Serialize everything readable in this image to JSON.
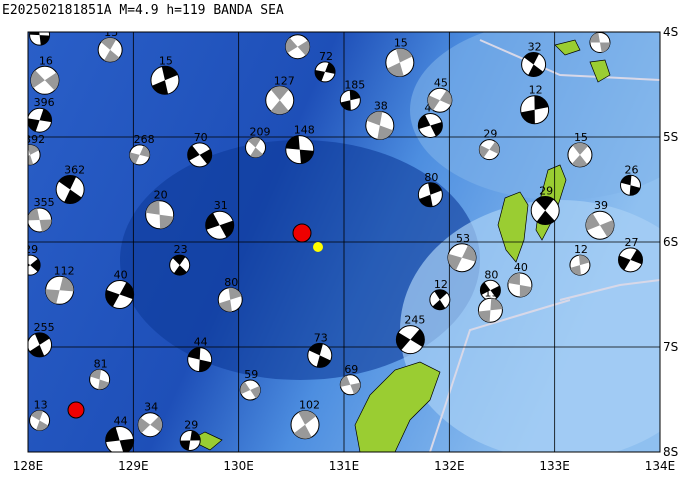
{
  "map": {
    "title": "E202502181851A M=4.9 h=119 BANDA SEA",
    "xlim": [
      128,
      134
    ],
    "ylim": [
      -8,
      -4
    ],
    "xticks": [
      {
        "value": 128,
        "label": "128E"
      },
      {
        "value": 129,
        "label": "129E"
      },
      {
        "value": 130,
        "label": "130E"
      },
      {
        "value": 131,
        "label": "131E"
      },
      {
        "value": 132,
        "label": "132E"
      },
      {
        "value": 133,
        "label": "133E"
      },
      {
        "value": 134,
        "label": "134E"
      }
    ],
    "yticks": [
      {
        "value": -4,
        "label": "4S"
      },
      {
        "value": -5,
        "label": "5S"
      },
      {
        "value": -6,
        "label": "6S"
      },
      {
        "value": -7,
        "label": "7S"
      },
      {
        "value": -8,
        "label": "8S"
      }
    ],
    "grid": true,
    "events": [
      {
        "lon": 133.43,
        "lat": -4.1,
        "depth": "17"
      },
      {
        "lon": 132.8,
        "lat": -4.31,
        "depth": "32"
      },
      {
        "lon": 131.53,
        "lat": -4.29,
        "depth": "15"
      },
      {
        "lon": 130.82,
        "lat": -4.38,
        "depth": "72"
      },
      {
        "lon": 130.56,
        "lat": -4.14,
        "depth": "33"
      },
      {
        "lon": 130.58,
        "lat": -5.12,
        "depth": "148"
      },
      {
        "lon": 130.16,
        "lat": -5.1,
        "depth": "209"
      },
      {
        "lon": 131.82,
        "lat": -5.55,
        "depth": "80"
      },
      {
        "lon": 132.12,
        "lat": -6.15,
        "depth": "53"
      },
      {
        "lon": 132.39,
        "lat": -6.46,
        "depth": "80"
      },
      {
        "lon": 132.67,
        "lat": -6.41,
        "depth": "40"
      },
      {
        "lon": 132.91,
        "lat": -5.7,
        "depth": "29"
      },
      {
        "lon": 133.24,
        "lat": -6.22,
        "depth": "12"
      },
      {
        "lon": 133.72,
        "lat": -6.17,
        "depth": "27"
      },
      {
        "lon": 133.43,
        "lat": -5.84,
        "depth": "39"
      },
      {
        "lon": 133.72,
        "lat": -5.46,
        "depth": "26"
      },
      {
        "lon": 133.24,
        "lat": -5.17,
        "depth": "15"
      },
      {
        "lon": 132.81,
        "lat": -4.74,
        "depth": "12"
      },
      {
        "lon": 132.38,
        "lat": -5.12,
        "depth": "29"
      },
      {
        "lon": 131.82,
        "lat": -4.89,
        "depth": "47"
      },
      {
        "lon": 131.34,
        "lat": -4.89,
        "depth": "38"
      },
      {
        "lon": 131.91,
        "lat": -6.55,
        "depth": "12"
      },
      {
        "lon": 132.39,
        "lat": -6.65,
        "depth": "19"
      },
      {
        "lon": 131.63,
        "lat": -6.93,
        "depth": "245"
      },
      {
        "lon": 131.06,
        "lat": -7.36,
        "depth": "69"
      },
      {
        "lon": 130.77,
        "lat": -7.08,
        "depth": "73"
      },
      {
        "lon": 130.63,
        "lat": -7.74,
        "depth": "102"
      },
      {
        "lon": 129.54,
        "lat": -7.89,
        "depth": "29"
      },
      {
        "lon": 129.16,
        "lat": -7.74,
        "depth": "34"
      },
      {
        "lon": 128.87,
        "lat": -7.89,
        "depth": "44"
      },
      {
        "lon": 128.11,
        "lat": -7.7,
        "depth": "13"
      },
      {
        "lon": 128.11,
        "lat": -6.98,
        "depth": "255"
      },
      {
        "lon": 128.3,
        "lat": -6.46,
        "depth": "112"
      },
      {
        "lon": 128.02,
        "lat": -6.22,
        "depth": "29"
      },
      {
        "lon": 128.11,
        "lat": -5.79,
        "depth": "355"
      },
      {
        "lon": 128.4,
        "lat": -5.5,
        "depth": "362"
      },
      {
        "lon": 128.02,
        "lat": -5.17,
        "depth": "392"
      },
      {
        "lon": 128.11,
        "lat": -4.84,
        "depth": "396"
      },
      {
        "lon": 128.16,
        "lat": -4.46,
        "depth": "16"
      },
      {
        "lon": 128.11,
        "lat": -4.03,
        "depth": "2"
      },
      {
        "lon": 128.78,
        "lat": -4.17,
        "depth": "13"
      },
      {
        "lon": 129.3,
        "lat": -4.46,
        "depth": "15"
      },
      {
        "lon": 129.06,
        "lat": -5.17,
        "depth": "268"
      },
      {
        "lon": 129.63,
        "lat": -5.17,
        "depth": "70"
      },
      {
        "lon": 129.25,
        "lat": -5.74,
        "depth": "20"
      },
      {
        "lon": 129.44,
        "lat": -6.22,
        "depth": "23"
      },
      {
        "lon": 129.92,
        "lat": -6.55,
        "depth": "80"
      },
      {
        "lon": 128.87,
        "lat": -6.5,
        "depth": "40"
      },
      {
        "lon": 130.11,
        "lat": -7.41,
        "depth": "59"
      },
      {
        "lon": 129.63,
        "lat": -7.12,
        "depth": "44"
      },
      {
        "lon": 130.39,
        "lat": -4.65,
        "depth": "127"
      },
      {
        "lon": 131.06,
        "lat": -4.65,
        "depth": "185"
      },
      {
        "lon": 131.91,
        "lat": -4.65,
        "depth": "45"
      },
      {
        "lon": 129.82,
        "lat": -5.84,
        "depth": "31"
      },
      {
        "lon": 128.68,
        "lat": -7.31,
        "depth": "81"
      }
    ]
  }
}
